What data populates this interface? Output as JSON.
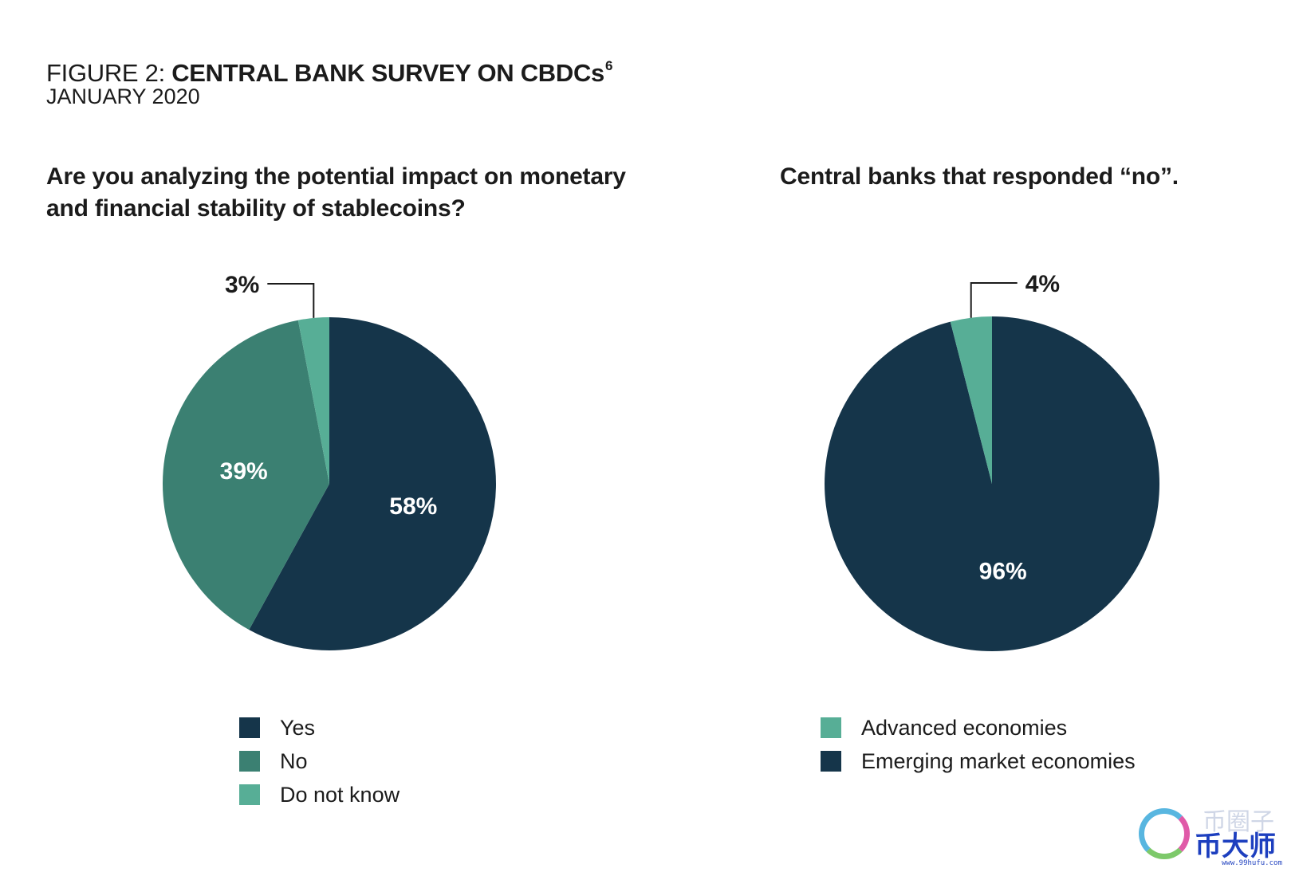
{
  "figure": {
    "prefix": "FIGURE 2: ",
    "title": "CENTRAL BANK SURVEY ON CBDCs",
    "footnote": "6",
    "date": "JANUARY 2020"
  },
  "chart_data": [
    {
      "type": "pie",
      "title": "Are you analyzing the potential impact on monetary and financial stability of stablecoins?",
      "start": "12 o'clock, clockwise",
      "slices": [
        {
          "name": "Yes",
          "value": 58,
          "label": "58%",
          "color": "#15354a",
          "label_position": "inside"
        },
        {
          "name": "No",
          "value": 39,
          "label": "39%",
          "color": "#3b8072",
          "label_position": "inside"
        },
        {
          "name": "Do not know",
          "value": 3,
          "label": "3%",
          "color": "#57ae96",
          "label_position": "callout-left"
        }
      ],
      "legend": [
        {
          "label": "Yes",
          "color": "#15354a"
        },
        {
          "label": "No",
          "color": "#3b8072"
        },
        {
          "label": "Do not know",
          "color": "#57ae96"
        }
      ],
      "legend_position": "bottom"
    },
    {
      "type": "pie",
      "title": "Central banks that responded “no”.",
      "start": "12 o'clock, clockwise",
      "slices": [
        {
          "name": "Emerging market economies",
          "value": 96,
          "label": "96%",
          "color": "#15354a",
          "label_position": "inside"
        },
        {
          "name": "Advanced economies",
          "value": 4,
          "label": "4%",
          "color": "#57ae96",
          "label_position": "callout-right"
        }
      ],
      "legend": [
        {
          "label": "Advanced economies",
          "color": "#57ae96"
        },
        {
          "label": "Emerging market economies",
          "color": "#15354a"
        }
      ],
      "legend_position": "bottom"
    }
  ],
  "watermark": {
    "text": "币大师",
    "ghost_text": "币圈子",
    "url": "www.99hufu.com"
  }
}
